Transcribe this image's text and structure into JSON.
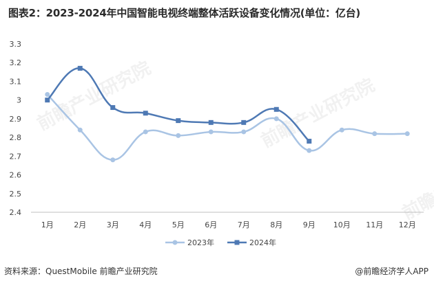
{
  "page": {
    "title": "图表2：2023-2024年中国智能电视终端整体活跃设备变化情况(单位：亿台)",
    "source": "资料来源：QuestMobile 前瞻产业研究院",
    "credit": "@前瞻经济学人APP",
    "watermark": "前瞻产业研究院"
  },
  "colors": {
    "series2023": "#a9c4e4",
    "series2024": "#4e79b4",
    "axis": "#bfbfbf"
  },
  "chart_data": {
    "type": "line",
    "categories": [
      "1月",
      "2月",
      "3月",
      "4月",
      "5月",
      "6月",
      "7月",
      "8月",
      "9月",
      "10月",
      "11月",
      "12月"
    ],
    "series": [
      {
        "name": "2023年",
        "values": [
          3.03,
          2.84,
          2.68,
          2.83,
          2.81,
          2.83,
          2.83,
          2.9,
          2.73,
          2.84,
          2.82,
          2.82
        ]
      },
      {
        "name": "2024年",
        "values": [
          3.0,
          3.17,
          2.96,
          2.93,
          2.89,
          2.88,
          2.88,
          2.95,
          2.78,
          null,
          null,
          null
        ]
      }
    ],
    "yticks": [
      "2.4",
      "2.5",
      "2.6",
      "2.7",
      "2.8",
      "2.9",
      "3",
      "3.1",
      "3.2",
      "3.3"
    ],
    "ylim": [
      2.4,
      3.3
    ],
    "smooth": true,
    "grid": false,
    "legend": "bottom"
  }
}
